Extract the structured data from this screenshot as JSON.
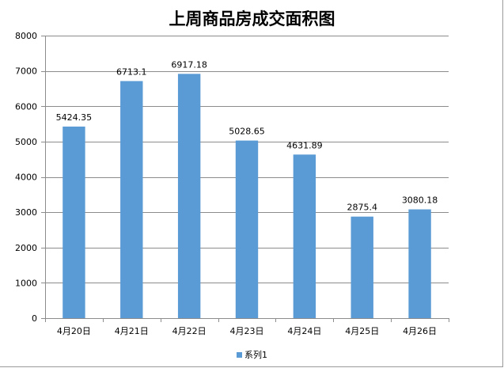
{
  "colors": {
    "bar": "#5B9BD5",
    "grid": "#8c8c8c",
    "axis": "#8c8c8c"
  },
  "chart_data": {
    "type": "bar",
    "title": "上周商品房成交面积图",
    "xlabel": "",
    "ylabel": "",
    "categories": [
      "4月20日",
      "4月21日",
      "4月22日",
      "4月23日",
      "4月24日",
      "4月25日",
      "4月26日"
    ],
    "series": [
      {
        "name": "系列1",
        "values": [
          5424.35,
          6713.1,
          6917.18,
          5028.65,
          4631.89,
          2875.4,
          3080.18
        ]
      }
    ],
    "data_labels": [
      "5424.35",
      "6713.1",
      "6917.18",
      "5028.65",
      "4631.89",
      "2875.4",
      "3080.18"
    ],
    "ylim": [
      0,
      8000
    ],
    "yticks": [
      0,
      1000,
      2000,
      3000,
      4000,
      5000,
      6000,
      7000,
      8000
    ],
    "grid": true,
    "legend_position": "bottom"
  }
}
